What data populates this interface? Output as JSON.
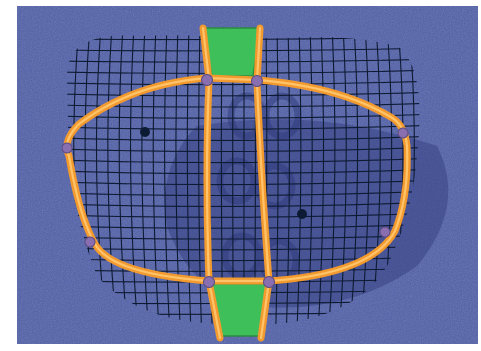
{
  "scene": {
    "subject": "playground-climbing-net-structure",
    "colors": {
      "ground": "#4a5aa8",
      "ground_dark": "#3b4a96",
      "ground_light": "#6170b8",
      "net": "#0d1a33",
      "frame_orange": "#f29a2e",
      "frame_highlight": "#ffc36a",
      "joint": "#8a6fb0",
      "deck": "#3fbf5a",
      "deck_edge": "#2a8c3f",
      "shadow": "#2e3a7a"
    }
  }
}
